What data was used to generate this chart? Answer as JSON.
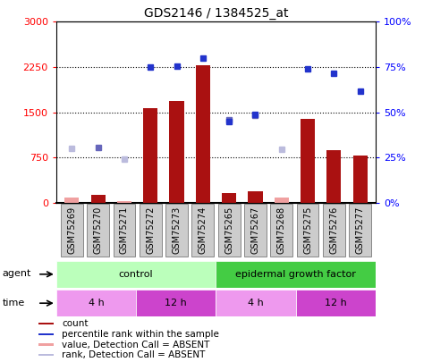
{
  "title": "GDS2146 / 1384525_at",
  "samples": [
    "GSM75269",
    "GSM75270",
    "GSM75271",
    "GSM75272",
    "GSM75273",
    "GSM75274",
    "GSM75265",
    "GSM75267",
    "GSM75268",
    "GSM75275",
    "GSM75276",
    "GSM75277"
  ],
  "count_values": [
    80,
    130,
    30,
    1570,
    1680,
    2280,
    155,
    195,
    80,
    1390,
    870,
    780
  ],
  "count_absent": [
    true,
    false,
    true,
    false,
    false,
    false,
    false,
    false,
    true,
    false,
    false,
    false
  ],
  "rank_values": [
    900,
    920,
    730,
    null,
    null,
    null,
    1380,
    1450,
    880,
    null,
    null,
    null
  ],
  "rank_absent": [
    true,
    false,
    true,
    false,
    false,
    false,
    false,
    false,
    true,
    false,
    false,
    false
  ],
  "percentile_values": [
    null,
    null,
    null,
    2250,
    2270,
    2390,
    1340,
    1460,
    null,
    2220,
    2140,
    1850
  ],
  "percentile_absent": [
    false,
    false,
    false,
    false,
    false,
    false,
    false,
    false,
    false,
    false,
    false,
    false
  ],
  "ylim_left": [
    0,
    3000
  ],
  "ylim_right": [
    0,
    100
  ],
  "yticks_left": [
    0,
    750,
    1500,
    2250,
    3000
  ],
  "ytick_labels_left": [
    "0",
    "750",
    "1500",
    "2250",
    "3000"
  ],
  "yticks_right": [
    0,
    25,
    50,
    75,
    100
  ],
  "ytick_labels_right": [
    "0%",
    "25%",
    "50%",
    "75%",
    "100%"
  ],
  "bar_color": "#aa1111",
  "bar_absent_color": "#f0a0a0",
  "rank_color": "#6666bb",
  "rank_absent_color": "#bbbbdd",
  "percentile_color": "#2233cc",
  "agent_labels": [
    "control",
    "epidermal growth factor"
  ],
  "agent_colors": [
    "#bbffbb",
    "#44cc44"
  ],
  "time_labels": [
    "4 h",
    "12 h",
    "4 h",
    "12 h"
  ],
  "time_colors_light": "#ee99ee",
  "time_colors_dark": "#cc44cc",
  "legend_items": [
    {
      "label": "count",
      "color": "#aa1111"
    },
    {
      "label": "percentile rank within the sample",
      "color": "#2233cc"
    },
    {
      "label": "value, Detection Call = ABSENT",
      "color": "#f0a0a0"
    },
    {
      "label": "rank, Detection Call = ABSENT",
      "color": "#bbbbdd"
    }
  ],
  "background_color": "#ffffff",
  "plot_bg_color": "#ffffff",
  "sample_box_color": "#cccccc",
  "sample_box_edge": "#888888"
}
